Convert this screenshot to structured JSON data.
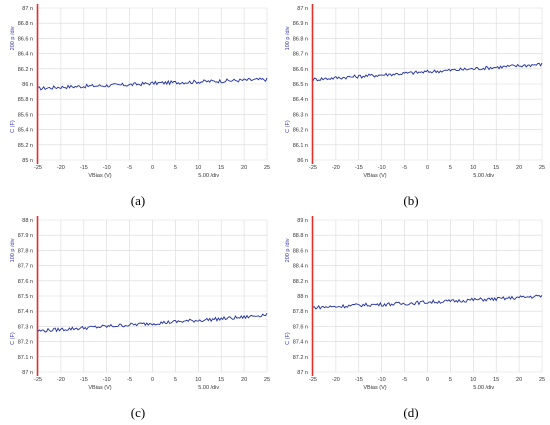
{
  "colors": {
    "trace": "#1f2ea0",
    "left_axis_bar": "#e0302a",
    "grid": "#d9d9d9",
    "tick_text": "#333333",
    "unit_text": "#3a3aa8"
  },
  "chart_data": [
    {
      "type": "line",
      "caption": "(a)",
      "ylabel": "C (F)",
      "ydiv": "200 p /div",
      "xlabel": "VBias (V)",
      "xdiv": "5.00 /div",
      "xlim": [
        -25,
        25
      ],
      "ylim": [
        85.0,
        87.0
      ],
      "yticks": [
        "87 n",
        "86.8 n",
        "86.6 n",
        "86.4 n",
        "86.2 n",
        "86 n",
        "85.8 n",
        "85.6 n",
        "85.4 n",
        "85.2 n",
        "85 n"
      ],
      "xticks": [
        "-25",
        "-20",
        "-15",
        "-10",
        "-5",
        "0",
        "5",
        "10",
        "15",
        "20",
        "25"
      ],
      "series": [
        {
          "x": [
            -25,
            -20,
            -15,
            -10,
            -5,
            0,
            5,
            10,
            15,
            20,
            25
          ],
          "y": [
            85.94,
            85.96,
            85.97,
            85.98,
            85.99,
            86.01,
            86.02,
            86.03,
            86.04,
            86.05,
            86.06
          ]
        }
      ]
    },
    {
      "type": "line",
      "caption": "(b)",
      "ylabel": "C (F)",
      "ydiv": "100 p /div",
      "xlabel": "VBias (V)",
      "xdiv": "5.00 /div",
      "xlim": [
        -25,
        25
      ],
      "ylim": [
        86.0,
        87.0
      ],
      "yticks": [
        "87 n",
        "86.9 n",
        "86.8 n",
        "86.7 n",
        "86.6 n",
        "86.5 n",
        "86.4 n",
        "86.3 n",
        "86.2 n",
        "86.1 n",
        "86 n"
      ],
      "xticks": [
        "-25",
        "-20",
        "-15",
        "-10",
        "-5",
        "0",
        "5",
        "10",
        "15",
        "20",
        "25"
      ],
      "series": [
        {
          "x": [
            -25,
            -20,
            -15,
            -10,
            -5,
            0,
            5,
            10,
            15,
            20,
            25
          ],
          "y": [
            86.53,
            86.54,
            86.55,
            86.56,
            86.57,
            86.58,
            86.59,
            86.6,
            86.61,
            86.62,
            86.63
          ]
        }
      ]
    },
    {
      "type": "line",
      "caption": "(c)",
      "ylabel": "C (F)",
      "ydiv": "100 p /div",
      "xlabel": "VBias (V)",
      "xdiv": "5.00 /div",
      "xlim": [
        -25,
        25
      ],
      "ylim": [
        87.0,
        88.0
      ],
      "yticks": [
        "88 n",
        "87.9 n",
        "87.8 n",
        "87.7 n",
        "87.6 n",
        "87.5 n",
        "87.4 n",
        "87.3 n",
        "87.2 n",
        "87.1 n",
        "87 n"
      ],
      "xticks": [
        "-25",
        "-20",
        "-15",
        "-10",
        "-5",
        "0",
        "5",
        "10",
        "15",
        "20",
        "25"
      ],
      "series": [
        {
          "x": [
            -25,
            -20,
            -15,
            -10,
            -5,
            0,
            5,
            10,
            15,
            20,
            25
          ],
          "y": [
            87.27,
            87.28,
            87.29,
            87.3,
            87.31,
            87.32,
            87.33,
            87.34,
            87.35,
            87.36,
            87.38
          ]
        }
      ]
    },
    {
      "type": "line",
      "caption": "(d)",
      "ylabel": "C (F)",
      "ydiv": "200 p /div",
      "xlabel": "VBias (V)",
      "xdiv": "5.00 /div",
      "xlim": [
        -25,
        25
      ],
      "ylim": [
        87.0,
        89.0
      ],
      "yticks": [
        "89 n",
        "88.8 n",
        "88.6 n",
        "88.4 n",
        "88.2 n",
        "88 n",
        "87.8 n",
        "87.6 n",
        "87.4 n",
        "87.2 n",
        "87 n"
      ],
      "xticks": [
        "-25",
        "-20",
        "-15",
        "-10",
        "-5",
        "0",
        "5",
        "10",
        "15",
        "20",
        "25"
      ],
      "series": [
        {
          "x": [
            -25,
            -20,
            -15,
            -10,
            -5,
            0,
            5,
            10,
            15,
            20,
            25
          ],
          "y": [
            87.85,
            87.86,
            87.88,
            87.89,
            87.9,
            87.92,
            87.93,
            87.95,
            87.96,
            87.98,
            88.0
          ]
        }
      ]
    }
  ]
}
